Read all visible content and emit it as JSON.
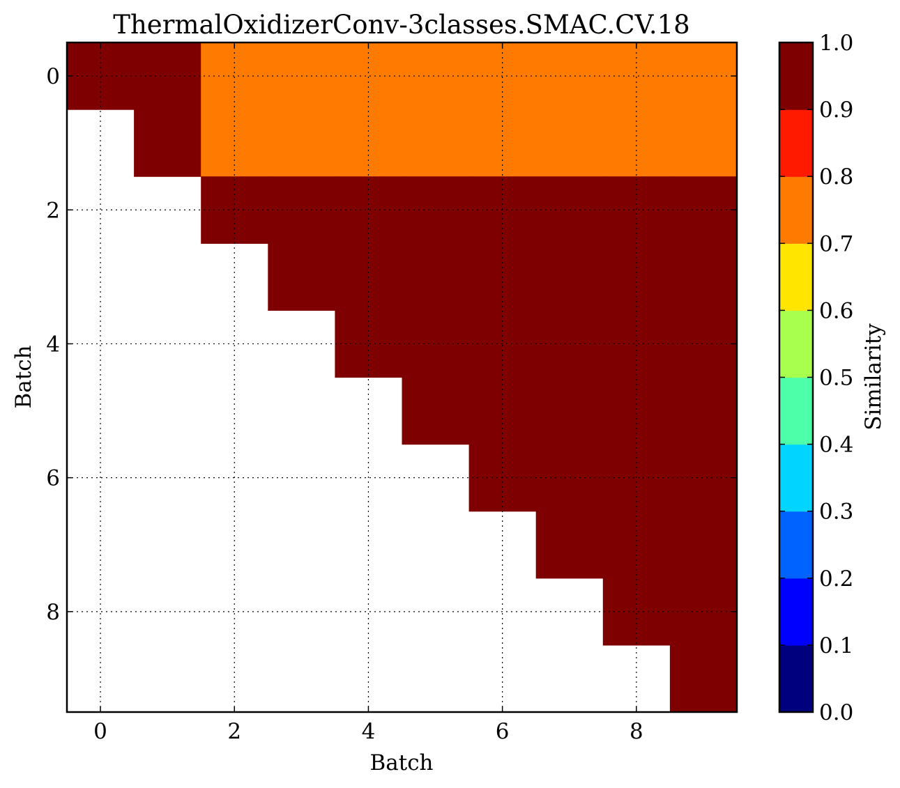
{
  "chart_data": {
    "type": "heatmap",
    "title": "ThermalOxidizerConv-3classes.SMAC.CV.18",
    "xlabel": "Batch",
    "ylabel": "Batch",
    "colorbar_label": "Similarity",
    "x_ticks": [
      "0",
      "2",
      "4",
      "6",
      "8"
    ],
    "y_ticks": [
      "0",
      "2",
      "4",
      "6",
      "8"
    ],
    "colorbar_ticks": [
      "0.0",
      "0.1",
      "0.2",
      "0.3",
      "0.4",
      "0.5",
      "0.6",
      "0.7",
      "0.8",
      "0.9",
      "1.0"
    ],
    "xlim": [
      -0.5,
      9.5
    ],
    "ylim": [
      9.5,
      -0.5
    ],
    "clim": [
      0.0,
      1.0
    ],
    "grid": true,
    "colormap": "jet, 10 discrete levels",
    "colorbar_colors": [
      "#00007f",
      "#0000ff",
      "#0063ff",
      "#00d4ff",
      "#4dffa9",
      "#a9ff4d",
      "#ffe500",
      "#ff7b00",
      "#ff1a00",
      "#7f0000"
    ],
    "matrix": [
      [
        1.0,
        1.0,
        0.75,
        0.75,
        0.75,
        0.75,
        0.75,
        0.75,
        0.75,
        0.75
      ],
      [
        null,
        1.0,
        0.75,
        0.75,
        0.75,
        0.75,
        0.75,
        0.75,
        0.75,
        0.75
      ],
      [
        null,
        null,
        1.0,
        1.0,
        1.0,
        1.0,
        1.0,
        1.0,
        1.0,
        1.0
      ],
      [
        null,
        null,
        null,
        1.0,
        1.0,
        1.0,
        1.0,
        1.0,
        1.0,
        1.0
      ],
      [
        null,
        null,
        null,
        null,
        1.0,
        1.0,
        1.0,
        1.0,
        1.0,
        1.0
      ],
      [
        null,
        null,
        null,
        null,
        null,
        1.0,
        1.0,
        1.0,
        1.0,
        1.0
      ],
      [
        null,
        null,
        null,
        null,
        null,
        null,
        1.0,
        1.0,
        1.0,
        1.0
      ],
      [
        null,
        null,
        null,
        null,
        null,
        null,
        null,
        1.0,
        1.0,
        1.0
      ],
      [
        null,
        null,
        null,
        null,
        null,
        null,
        null,
        null,
        1.0,
        1.0
      ],
      [
        null,
        null,
        null,
        null,
        null,
        null,
        null,
        null,
        null,
        1.0
      ]
    ]
  }
}
